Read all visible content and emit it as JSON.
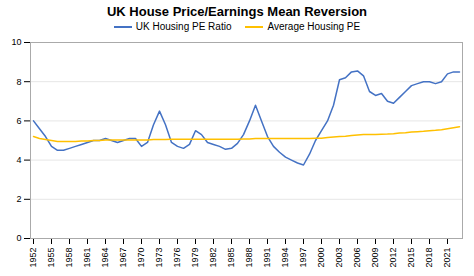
{
  "chart_data": {
    "type": "line",
    "title": "UK House Price/Earnings Mean Reversion",
    "x": [
      1952,
      1953,
      1954,
      1955,
      1956,
      1957,
      1958,
      1959,
      1960,
      1961,
      1962,
      1963,
      1964,
      1965,
      1966,
      1967,
      1968,
      1969,
      1970,
      1971,
      1972,
      1973,
      1974,
      1975,
      1976,
      1977,
      1978,
      1979,
      1980,
      1981,
      1982,
      1983,
      1984,
      1985,
      1986,
      1987,
      1988,
      1989,
      1990,
      1991,
      1992,
      1993,
      1994,
      1995,
      1996,
      1997,
      1998,
      1999,
      2000,
      2001,
      2002,
      2003,
      2004,
      2005,
      2006,
      2007,
      2008,
      2009,
      2010,
      2011,
      2012,
      2013,
      2014,
      2015,
      2016,
      2017,
      2018,
      2019,
      2020,
      2021,
      2022,
      2023
    ],
    "series": [
      {
        "name": "UK Housing PE Ratio",
        "color": "#4472C4",
        "values": [
          6.0,
          5.6,
          5.2,
          4.7,
          4.5,
          4.5,
          4.6,
          4.7,
          4.8,
          4.9,
          5.0,
          5.0,
          5.1,
          5.0,
          4.9,
          5.0,
          5.1,
          5.1,
          4.7,
          4.9,
          5.8,
          6.5,
          5.8,
          4.9,
          4.7,
          4.6,
          4.8,
          5.5,
          5.3,
          4.9,
          4.8,
          4.7,
          4.55,
          4.6,
          4.85,
          5.3,
          6.0,
          6.8,
          6.0,
          5.2,
          4.7,
          4.4,
          4.15,
          4.0,
          3.85,
          3.75,
          4.3,
          5.0,
          5.5,
          6.0,
          6.8,
          8.1,
          8.2,
          8.5,
          8.55,
          8.3,
          7.5,
          7.3,
          7.4,
          7.0,
          6.9,
          7.2,
          7.5,
          7.8,
          7.9,
          8.0,
          8.0,
          7.9,
          8.0,
          8.4,
          8.5,
          8.5
        ]
      },
      {
        "name": "Average Housing PE",
        "color": "#FFC000",
        "values": [
          5.2,
          5.1,
          5.05,
          5.0,
          4.95,
          4.95,
          4.95,
          4.95,
          4.97,
          4.98,
          5.0,
          5.0,
          5.02,
          5.02,
          5.02,
          5.02,
          5.03,
          5.03,
          5.03,
          5.03,
          5.05,
          5.05,
          5.05,
          5.06,
          5.06,
          5.06,
          5.06,
          5.07,
          5.07,
          5.07,
          5.07,
          5.07,
          5.07,
          5.07,
          5.07,
          5.08,
          5.08,
          5.1,
          5.1,
          5.1,
          5.1,
          5.1,
          5.1,
          5.1,
          5.1,
          5.1,
          5.1,
          5.12,
          5.12,
          5.15,
          5.18,
          5.2,
          5.22,
          5.25,
          5.28,
          5.3,
          5.3,
          5.3,
          5.32,
          5.33,
          5.35,
          5.38,
          5.4,
          5.43,
          5.45,
          5.47,
          5.5,
          5.52,
          5.55,
          5.6,
          5.65,
          5.7
        ]
      }
    ],
    "xlim": [
      1951.5,
      2023.5
    ],
    "xticks": [
      1952,
      1955,
      1958,
      1961,
      1964,
      1967,
      1970,
      1973,
      1976,
      1979,
      1982,
      1985,
      1988,
      1991,
      1994,
      1997,
      2000,
      2003,
      2006,
      2009,
      2012,
      2015,
      2018,
      2021
    ],
    "ylim": [
      0,
      10
    ],
    "yticks": [
      0,
      2,
      4,
      6,
      8,
      10
    ],
    "grid": true,
    "legend": "top"
  }
}
